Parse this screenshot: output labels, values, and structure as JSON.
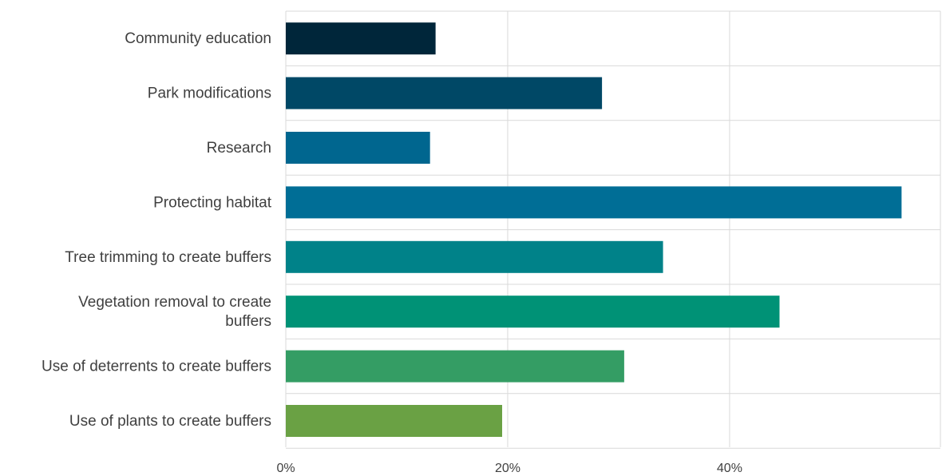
{
  "chart_data": {
    "type": "bar",
    "orientation": "horizontal",
    "categories": [
      "Community education",
      "Park modifications",
      "Research",
      "Protecting habitat",
      "Tree trimming to create buffers",
      "Vegetation removal to create buffers",
      "Use of deterrents to create buffers",
      "Use of plants to create buffers"
    ],
    "category_lines": [
      [
        "Community education"
      ],
      [
        "Park modifications"
      ],
      [
        "Research"
      ],
      [
        "Protecting habitat"
      ],
      [
        "Tree trimming to create buffers"
      ],
      [
        "Vegetation removal to create",
        "buffers"
      ],
      [
        "Use of deterrents to create buffers"
      ],
      [
        "Use of plants to create buffers"
      ]
    ],
    "values": [
      13.5,
      28.5,
      13,
      55.5,
      34,
      44.5,
      30.5,
      19.5
    ],
    "colors": [
      "#00263a",
      "#004866",
      "#00668f",
      "#006e96",
      "#008289",
      "#009276",
      "#349d64",
      "#6aa144"
    ],
    "xlim": [
      0,
      59
    ],
    "ticks": [
      0,
      20,
      40
    ],
    "tick_labels": [
      "0%",
      "20%",
      "40%"
    ],
    "grid": true,
    "title": "",
    "xlabel": "",
    "ylabel": ""
  }
}
